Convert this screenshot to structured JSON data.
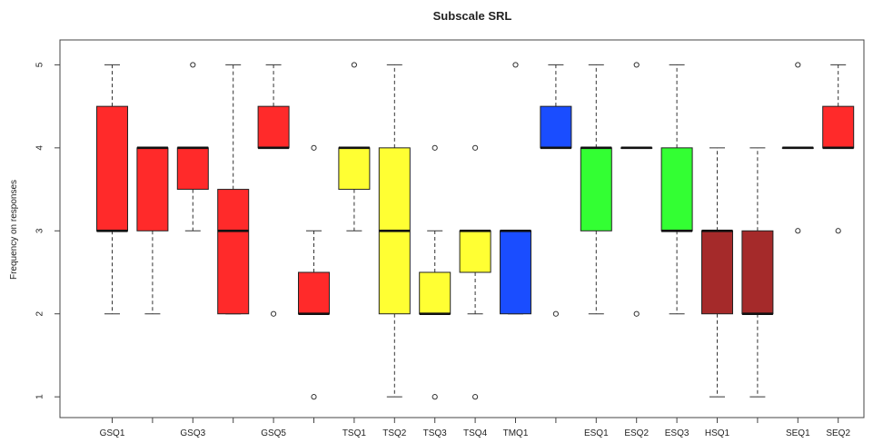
{
  "chart_data": {
    "type": "boxplot",
    "title": "Subscale SRL",
    "xlabel": "",
    "ylabel": "Frequency on responses",
    "ylim": [
      0.75,
      5.3
    ],
    "yticks": [
      "1",
      "2",
      "3",
      "4",
      "5"
    ],
    "grid": false,
    "categories": [
      {
        "label": "GSQ1",
        "color": "#ff2a2a",
        "min": 2,
        "q1": 3,
        "median": 3,
        "q3": 4.5,
        "max": 5,
        "outliers": []
      },
      {
        "label": "",
        "color": "#ff2a2a",
        "min": 2,
        "q1": 3,
        "median": 4,
        "q3": 4,
        "max": 4,
        "outliers": []
      },
      {
        "label": "GSQ3",
        "color": "#ff2a2a",
        "min": 3,
        "q1": 3.5,
        "median": 4,
        "q3": 4,
        "max": 4,
        "outliers": [
          5
        ]
      },
      {
        "label": "",
        "color": "#ff2a2a",
        "min": 2,
        "q1": 2,
        "median": 3,
        "q3": 3.5,
        "max": 5,
        "outliers": []
      },
      {
        "label": "GSQ5",
        "color": "#ff2a2a",
        "min": 4,
        "q1": 4,
        "median": 4,
        "q3": 4.5,
        "max": 5,
        "outliers": [
          2
        ]
      },
      {
        "label": "",
        "color": "#ff2a2a",
        "min": 2,
        "q1": 2,
        "median": 2,
        "q3": 2.5,
        "max": 3,
        "outliers": [
          4,
          1
        ]
      },
      {
        "label": "TSQ1",
        "color": "#ffff33",
        "min": 3,
        "q1": 3.5,
        "median": 4,
        "q3": 4,
        "max": 4,
        "outliers": [
          5
        ]
      },
      {
        "label": "TSQ2",
        "color": "#ffff33",
        "min": 1,
        "q1": 2,
        "median": 3,
        "q3": 4,
        "max": 5,
        "outliers": []
      },
      {
        "label": "TSQ3",
        "color": "#ffff33",
        "min": 2,
        "q1": 2,
        "median": 2,
        "q3": 2.5,
        "max": 3,
        "outliers": [
          4,
          1
        ]
      },
      {
        "label": "TSQ4",
        "color": "#ffff33",
        "min": 2,
        "q1": 2.5,
        "median": 3,
        "q3": 3,
        "max": 3,
        "outliers": [
          4,
          1
        ]
      },
      {
        "label": "TMQ1",
        "color": "#1a4dff",
        "min": 2,
        "q1": 2,
        "median": 3,
        "q3": 3,
        "max": 3,
        "outliers": [
          5
        ]
      },
      {
        "label": "",
        "color": "#1a4dff",
        "min": 4,
        "q1": 4,
        "median": 4,
        "q3": 4.5,
        "max": 5,
        "outliers": [
          2
        ]
      },
      {
        "label": "ESQ1",
        "color": "#33ff33",
        "min": 2,
        "q1": 3,
        "median": 4,
        "q3": 4,
        "max": 5,
        "outliers": []
      },
      {
        "label": "ESQ2",
        "color": "#33ff33",
        "min": 4,
        "q1": 4,
        "median": 4,
        "q3": 4,
        "max": 4,
        "outliers": [
          5,
          2
        ]
      },
      {
        "label": "ESQ3",
        "color": "#33ff33",
        "min": 2,
        "q1": 3,
        "median": 3,
        "q3": 4,
        "max": 5,
        "outliers": []
      },
      {
        "label": "HSQ1",
        "color": "#a52a2a",
        "min": 1,
        "q1": 2,
        "median": 3,
        "q3": 3,
        "max": 4,
        "outliers": []
      },
      {
        "label": "",
        "color": "#a52a2a",
        "min": 1,
        "q1": 2,
        "median": 2,
        "q3": 3,
        "max": 4,
        "outliers": []
      },
      {
        "label": "SEQ1",
        "color": "#ff2a2a",
        "min": 4,
        "q1": 4,
        "median": 4,
        "q3": 4,
        "max": 4,
        "outliers": [
          5,
          3
        ]
      },
      {
        "label": "SEQ2",
        "color": "#ff2a2a",
        "min": 4,
        "q1": 4,
        "median": 4,
        "q3": 4.5,
        "max": 5,
        "outliers": [
          3
        ]
      }
    ]
  }
}
